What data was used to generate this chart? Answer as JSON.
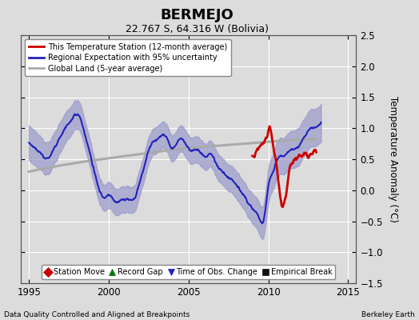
{
  "title": "BERMEJO",
  "subtitle": "22.767 S, 64.316 W (Bolivia)",
  "ylabel": "Temperature Anomaly (°C)",
  "xlabel_left": "Data Quality Controlled and Aligned at Breakpoints",
  "xlabel_right": "Berkeley Earth",
  "ylim": [
    -1.5,
    2.5
  ],
  "xlim": [
    1994.5,
    2015.5
  ],
  "xticks": [
    1995,
    2000,
    2005,
    2010,
    2015
  ],
  "yticks": [
    -1.5,
    -1.0,
    -0.5,
    0.0,
    0.5,
    1.0,
    1.5,
    2.0,
    2.5
  ],
  "bg_color": "#dcdcdc",
  "plot_bg_color": "#dcdcdc",
  "grid_color": "#ffffff",
  "regional_color": "#2222bb",
  "regional_fill_color": "#9999cc",
  "station_color": "#cc0000",
  "global_color": "#aaaaaa",
  "legend_main": [
    {
      "label": "This Temperature Station (12-month average)",
      "color": "#cc0000",
      "lw": 2.0
    },
    {
      "label": "Regional Expectation with 95% uncertainty",
      "color": "#2222bb",
      "lw": 2.0
    },
    {
      "label": "Global Land (5-year average)",
      "color": "#aaaaaa",
      "lw": 2.0
    }
  ],
  "bottom_legend": [
    {
      "label": "Station Move",
      "marker": "D",
      "color": "#cc0000"
    },
    {
      "label": "Record Gap",
      "marker": "^",
      "color": "#007700"
    },
    {
      "label": "Time of Obs. Change",
      "marker": "v",
      "color": "#2222bb"
    },
    {
      "label": "Empirical Break",
      "marker": "s",
      "color": "#111111"
    }
  ],
  "regional_x": [
    1995.0,
    1995.3,
    1995.6,
    1995.9,
    1996.2,
    1996.5,
    1996.8,
    1997.1,
    1997.4,
    1997.7,
    1998.0,
    1998.3,
    1998.6,
    1998.9,
    1999.2,
    1999.5,
    1999.8,
    2000.1,
    2000.4,
    2000.7,
    2001.0,
    2001.3,
    2001.6,
    2001.9,
    2002.2,
    2002.5,
    2002.8,
    2003.1,
    2003.4,
    2003.7,
    2004.0,
    2004.3,
    2004.6,
    2004.9,
    2005.2,
    2005.5,
    2005.8,
    2006.1,
    2006.4,
    2006.7,
    2007.0,
    2007.3,
    2007.6,
    2007.9,
    2008.2,
    2008.5,
    2008.8,
    2009.1,
    2009.4,
    2009.7,
    2010.0,
    2010.3,
    2010.6,
    2010.9,
    2011.2,
    2011.5,
    2011.8,
    2012.1,
    2012.4,
    2012.7,
    2013.0,
    2013.3
  ],
  "regional_y": [
    0.75,
    0.7,
    0.65,
    0.55,
    0.5,
    0.6,
    0.75,
    0.9,
    1.05,
    1.15,
    1.2,
    1.1,
    0.8,
    0.5,
    0.2,
    0.0,
    -0.1,
    -0.15,
    -0.2,
    -0.18,
    -0.15,
    -0.15,
    -0.12,
    0.1,
    0.35,
    0.65,
    0.8,
    0.85,
    0.9,
    0.85,
    0.7,
    0.75,
    0.8,
    0.7,
    0.65,
    0.7,
    0.6,
    0.5,
    0.55,
    0.45,
    0.35,
    0.25,
    0.2,
    0.1,
    0.0,
    -0.1,
    -0.25,
    -0.35,
    -0.45,
    -0.5,
    0.1,
    0.3,
    0.5,
    0.55,
    0.6,
    0.65,
    0.7,
    0.8,
    0.9,
    1.0,
    1.05,
    1.1
  ],
  "uncertainty": [
    0.28,
    0.28,
    0.27,
    0.26,
    0.26,
    0.25,
    0.25,
    0.24,
    0.24,
    0.23,
    0.23,
    0.22,
    0.22,
    0.22,
    0.21,
    0.21,
    0.21,
    0.21,
    0.21,
    0.21,
    0.21,
    0.21,
    0.21,
    0.21,
    0.21,
    0.21,
    0.21,
    0.21,
    0.21,
    0.21,
    0.21,
    0.21,
    0.21,
    0.21,
    0.21,
    0.21,
    0.21,
    0.21,
    0.21,
    0.21,
    0.21,
    0.21,
    0.21,
    0.22,
    0.22,
    0.22,
    0.23,
    0.24,
    0.25,
    0.26,
    0.28,
    0.28,
    0.29,
    0.29,
    0.3,
    0.3,
    0.3,
    0.3,
    0.3,
    0.3,
    0.3,
    0.3
  ],
  "global_x": [
    1995.0,
    1997.0,
    1999.0,
    2001.0,
    2003.0,
    2005.0,
    2007.0,
    2009.0,
    2011.0,
    2013.0
  ],
  "global_y": [
    0.3,
    0.4,
    0.48,
    0.55,
    0.62,
    0.68,
    0.72,
    0.76,
    0.8,
    0.82
  ],
  "station_x": [
    2009.0,
    2009.2,
    2009.4,
    2009.6,
    2009.8,
    2010.0,
    2010.1,
    2010.2,
    2010.3,
    2010.4,
    2010.5,
    2010.6,
    2010.7,
    2010.8,
    2010.9,
    2011.0,
    2011.1,
    2011.2,
    2011.3,
    2011.5,
    2011.7,
    2011.9,
    2012.1,
    2012.3,
    2012.5,
    2012.7,
    2013.0
  ],
  "station_y": [
    0.55,
    0.6,
    0.7,
    0.75,
    0.85,
    0.95,
    1.0,
    0.9,
    0.7,
    0.55,
    0.4,
    0.2,
    0.0,
    -0.15,
    -0.25,
    -0.2,
    -0.1,
    0.1,
    0.3,
    0.45,
    0.5,
    0.55,
    0.55,
    0.6,
    0.55,
    0.6,
    0.6
  ]
}
